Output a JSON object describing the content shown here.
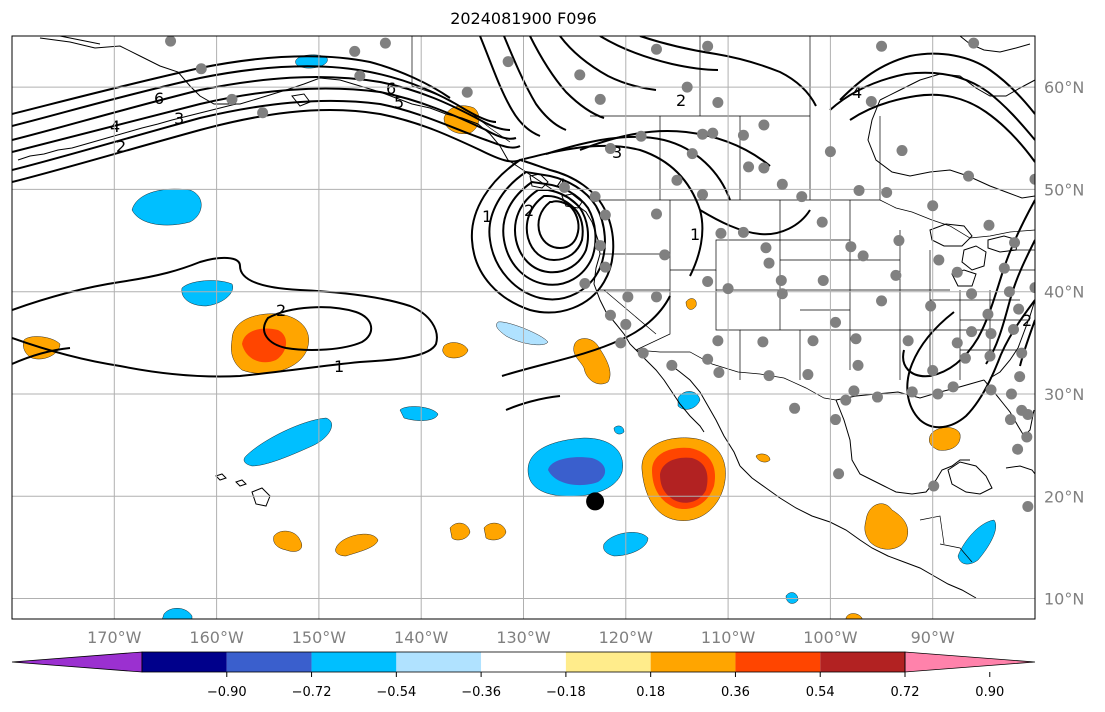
{
  "title": "2024081900 F096",
  "map": {
    "projection": "plate-carree",
    "lon_range": [
      -180,
      -80
    ],
    "lat_range": [
      8,
      65
    ],
    "lon_ticks": [
      {
        "value": -170,
        "label": "170°W"
      },
      {
        "value": -160,
        "label": "160°W"
      },
      {
        "value": -150,
        "label": "150°W"
      },
      {
        "value": -140,
        "label": "140°W"
      },
      {
        "value": -130,
        "label": "130°W"
      },
      {
        "value": -120,
        "label": "120°W"
      },
      {
        "value": -110,
        "label": "110°W"
      },
      {
        "value": -100,
        "label": "100°W"
      },
      {
        "value": -90,
        "label": "90°W"
      }
    ],
    "lat_ticks": [
      {
        "value": 60,
        "label": "60°N"
      },
      {
        "value": 50,
        "label": "50°N"
      },
      {
        "value": 40,
        "label": "40°N"
      },
      {
        "value": 30,
        "label": "30°N"
      },
      {
        "value": 20,
        "label": "20°N"
      },
      {
        "value": 10,
        "label": "10°N"
      }
    ],
    "grid": true,
    "layers": [
      "coastlines",
      "country-borders",
      "us-state-borders",
      "filled-anomaly-contours",
      "line-contours",
      "station-dots"
    ]
  },
  "colorbar": {
    "orientation": "horizontal",
    "extend": "both",
    "levels": [
      -1.08,
      -0.9,
      -0.72,
      -0.54,
      -0.36,
      -0.18,
      0.18,
      0.36,
      0.54,
      0.72,
      0.9,
      1.08
    ],
    "tick_labels": [
      "−0.90",
      "−0.72",
      "−0.54",
      "−0.36",
      "−0.18",
      "0.18",
      "0.36",
      "0.54",
      "0.72",
      "0.90"
    ],
    "colors": [
      "#9b30d0",
      "#00008b",
      "#3a5fcd",
      "#00bfff",
      "#b0e2ff",
      "#ffffff",
      "#ffec8b",
      "#ffa500",
      "#ff4500",
      "#b22222",
      "#ff82ab"
    ]
  },
  "line_contours": {
    "levels_labeled": [
      "1",
      "2",
      "3",
      "4",
      "5",
      "6"
    ],
    "color": "#000000"
  },
  "stations": {
    "color": "#808080",
    "points": [
      [
        -164.5,
        64.5
      ],
      [
        -161.5,
        61.8
      ],
      [
        -158.5,
        58.8
      ],
      [
        -155.5,
        57.5
      ],
      [
        -146.5,
        63.5
      ],
      [
        -143.5,
        64.3
      ],
      [
        -146.0,
        61.1
      ],
      [
        -135.5,
        59.5
      ],
      [
        -131.5,
        62.5
      ],
      [
        -124.5,
        61.2
      ],
      [
        -117.0,
        63.7
      ],
      [
        -112.0,
        64.0
      ],
      [
        -95.0,
        64.0
      ],
      [
        -86.0,
        64.3
      ],
      [
        -122.5,
        58.8
      ],
      [
        -114.0,
        60.0
      ],
      [
        -111.0,
        58.5
      ],
      [
        -96.0,
        58.6
      ],
      [
        -121.5,
        54.0
      ],
      [
        -123.0,
        49.3
      ],
      [
        -122.0,
        47.5
      ],
      [
        -117.0,
        47.6
      ],
      [
        -113.5,
        53.5
      ],
      [
        -115.0,
        50.9
      ],
      [
        -112.5,
        49.5
      ],
      [
        -108.0,
        52.2
      ],
      [
        -106.5,
        52.1
      ],
      [
        -104.7,
        50.5
      ],
      [
        -102.8,
        49.3
      ],
      [
        -100.0,
        53.7
      ],
      [
        -97.2,
        49.9
      ],
      [
        -94.5,
        49.7
      ],
      [
        -93.0,
        53.8
      ],
      [
        -86.5,
        51.3
      ],
      [
        -80.0,
        51.0
      ],
      [
        -90.0,
        48.4
      ],
      [
        -84.5,
        46.5
      ],
      [
        -82.0,
        44.8
      ],
      [
        -111.5,
        55.5
      ],
      [
        -112.5,
        55.4
      ],
      [
        -106.5,
        56.3
      ],
      [
        -108.5,
        55.3
      ],
      [
        -118.5,
        55.2
      ],
      [
        -126.0,
        50.2
      ],
      [
        -124.0,
        40.8
      ],
      [
        -122.5,
        44.5
      ],
      [
        -122.0,
        42.4
      ],
      [
        -116.2,
        43.6
      ],
      [
        -117.0,
        39.5
      ],
      [
        -119.8,
        39.5
      ],
      [
        -121.5,
        37.7
      ],
      [
        -120.5,
        35.0
      ],
      [
        -115.5,
        32.8
      ],
      [
        -118.3,
        34.0
      ],
      [
        -110.7,
        45.7
      ],
      [
        -108.5,
        45.8
      ],
      [
        -106.3,
        44.3
      ],
      [
        -104.8,
        41.1
      ],
      [
        -104.7,
        39.8
      ],
      [
        -110.0,
        40.3
      ],
      [
        -112.0,
        41.0
      ],
      [
        -106.6,
        35.1
      ],
      [
        -106.0,
        31.8
      ],
      [
        -110.9,
        32.1
      ],
      [
        -112.0,
        33.4
      ],
      [
        -111.0,
        35.2
      ],
      [
        -106.0,
        42.8
      ],
      [
        -100.8,
        46.8
      ],
      [
        -98.0,
        44.4
      ],
      [
        -96.8,
        43.5
      ],
      [
        -100.7,
        41.1
      ],
      [
        -99.5,
        37.0
      ],
      [
        -97.5,
        35.4
      ],
      [
        -101.7,
        35.2
      ],
      [
        -102.2,
        31.9
      ],
      [
        -97.3,
        32.8
      ],
      [
        -95.4,
        29.7
      ],
      [
        -97.7,
        30.3
      ],
      [
        -98.5,
        29.4
      ],
      [
        -99.2,
        22.2
      ],
      [
        -103.5,
        28.6
      ],
      [
        -99.5,
        27.5
      ],
      [
        -93.3,
        45.0
      ],
      [
        -93.6,
        41.6
      ],
      [
        -95.0,
        39.1
      ],
      [
        -92.4,
        35.2
      ],
      [
        -90.0,
        32.3
      ],
      [
        -88.0,
        30.7
      ],
      [
        -86.8,
        33.5
      ],
      [
        -84.4,
        33.7
      ],
      [
        -86.2,
        36.1
      ],
      [
        -86.2,
        39.8
      ],
      [
        -87.6,
        41.9
      ],
      [
        -89.4,
        43.1
      ],
      [
        -83.0,
        42.3
      ],
      [
        -82.5,
        40.0
      ],
      [
        -84.6,
        37.8
      ],
      [
        -90.2,
        38.6
      ],
      [
        -80.0,
        40.4
      ],
      [
        -81.3,
        34.0
      ],
      [
        -82.3,
        30.0
      ],
      [
        -81.3,
        28.4
      ],
      [
        -84.3,
        30.4
      ],
      [
        -80.7,
        28.0
      ],
      [
        -82.4,
        27.5
      ],
      [
        -80.8,
        25.8
      ],
      [
        -80.7,
        19.0
      ],
      [
        -81.7,
        24.6
      ],
      [
        -92.0,
        30.2
      ],
      [
        -87.6,
        35.0
      ],
      [
        -84.3,
        35.9
      ],
      [
        -81.6,
        38.3
      ],
      [
        -82.1,
        36.3
      ],
      [
        -78.6,
        35.8
      ],
      [
        -77.5,
        37.5
      ],
      [
        -76.6,
        39.3
      ],
      [
        -75.2,
        39.9
      ],
      [
        -74.0,
        40.7
      ],
      [
        -71.0,
        42.4
      ],
      [
        -73.8,
        42.6
      ],
      [
        -76.1,
        43.1
      ],
      [
        -78.7,
        42.9
      ],
      [
        -79.4,
        43.7
      ],
      [
        -75.7,
        45.4
      ],
      [
        -73.6,
        45.5
      ],
      [
        -71.2,
        46.8
      ],
      [
        -69.0,
        44.8
      ],
      [
        -66.1,
        45.3
      ],
      [
        -63.6,
        44.6
      ],
      [
        -81.5,
        31.7
      ],
      [
        -120.0,
        36.8
      ],
      [
        -89.9,
        21.0
      ],
      [
        -89.5,
        30.0
      ]
    ]
  },
  "marker": {
    "lon": -123.0,
    "lat": 19.5,
    "color": "#000000"
  }
}
